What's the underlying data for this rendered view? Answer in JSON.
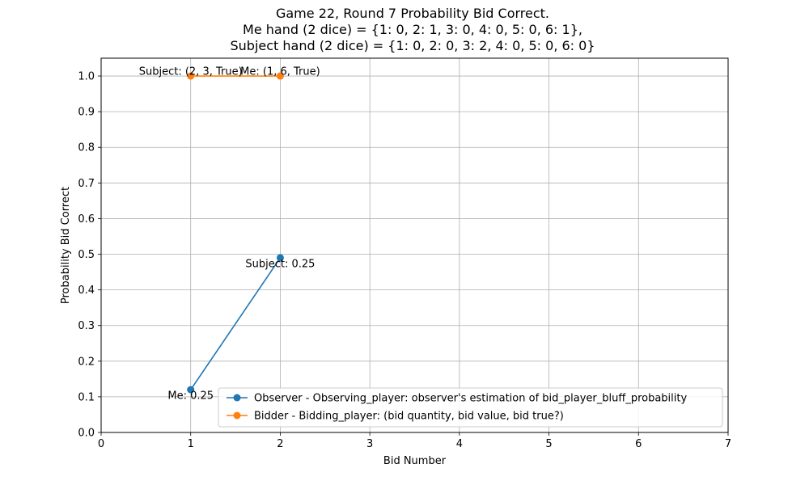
{
  "chart_data": {
    "type": "line",
    "title_lines": [
      "Game 22, Round 7 Probability Bid Correct.",
      "Me hand (2 dice) = {1: 0, 2: 1, 3: 0, 4: 0, 5: 0, 6: 1},",
      "Subject hand (2 dice) = {1: 0, 2: 0, 3: 2, 4: 0, 5: 0, 6: 0}"
    ],
    "xlabel": "Bid Number",
    "ylabel": "Probability Bid Correct",
    "xlim": [
      0,
      7
    ],
    "ylim": [
      0,
      1.05
    ],
    "xticks": [
      "0",
      "1",
      "2",
      "3",
      "4",
      "5",
      "6",
      "7"
    ],
    "yticks": [
      "0.0",
      "0.1",
      "0.2",
      "0.3",
      "0.4",
      "0.5",
      "0.6",
      "0.7",
      "0.8",
      "0.9",
      "1.0"
    ],
    "grid": true,
    "legend_position": "lower-right",
    "series": [
      {
        "name": "Observer - Observing_player: observer's estimation of bid_player_bluff_probability",
        "color": "#1f77b4",
        "x": [
          1,
          2
        ],
        "y": [
          0.12,
          0.49
        ],
        "labels": [
          "Me: 0.25",
          "Subject: 0.25"
        ]
      },
      {
        "name": "Bidder -  Bidding_player: (bid quantity, bid value, bid true?)",
        "color": "#ff7f0e",
        "x": [
          1,
          2
        ],
        "y": [
          1.0,
          1.0
        ],
        "labels": [
          "Subject: (2, 3, True)",
          "Me: (1, 6, True)"
        ]
      }
    ]
  }
}
